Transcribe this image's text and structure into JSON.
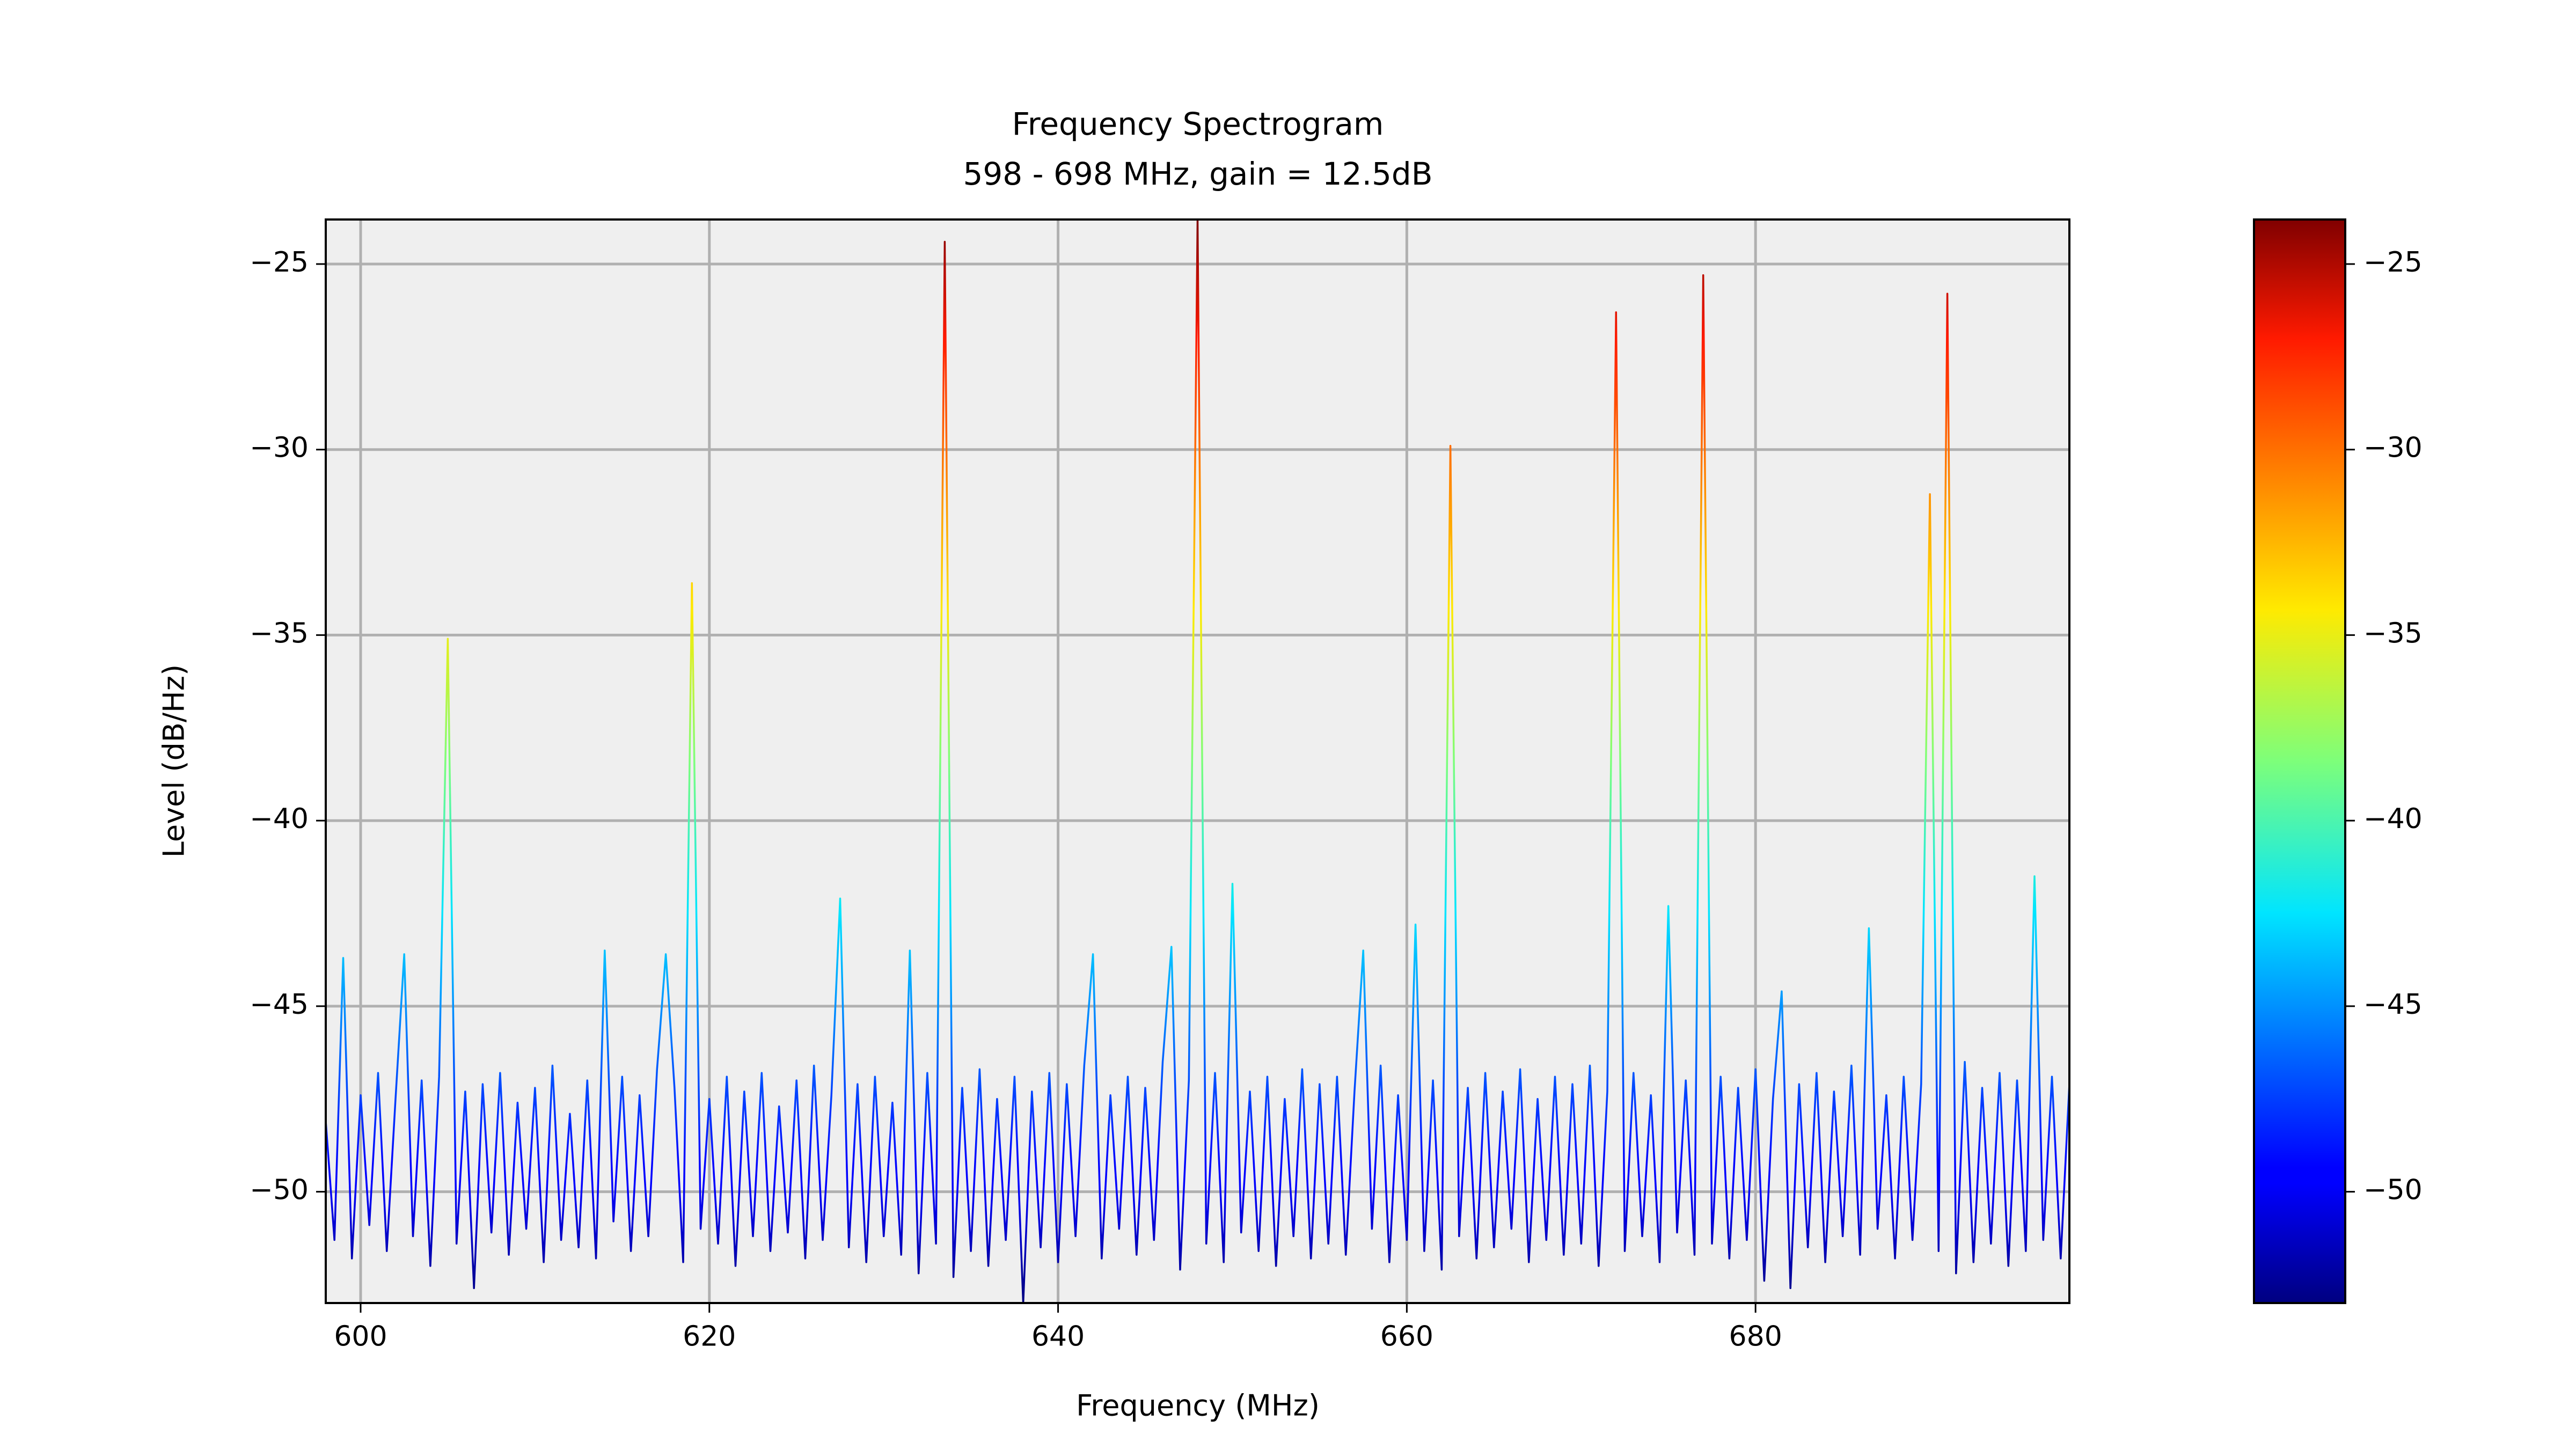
{
  "chart_data": {
    "type": "line",
    "title": "Frequency Spectrogram",
    "subtitle": "598 - 698 MHz, gain = 12.5dB",
    "x_label": "Frequency (MHz)",
    "y_label": "Level (dB/Hz)",
    "colormap": "jet",
    "background": "#efefef",
    "grid": true,
    "xlim": [
      598,
      698
    ],
    "ylim": [
      -53,
      -23.8
    ],
    "xticks": [
      600,
      620,
      640,
      660,
      680
    ],
    "yticks": [
      {
        "value": -25,
        "label": "−25"
      },
      {
        "value": -30,
        "label": "−30"
      },
      {
        "value": -35,
        "label": "−35"
      },
      {
        "value": -40,
        "label": "−40"
      },
      {
        "value": -45,
        "label": "−45"
      },
      {
        "value": -50,
        "label": "−50"
      }
    ],
    "colorbar": {
      "lim": [
        -53,
        -23.8
      ],
      "ticks": [
        {
          "value": -25,
          "label": "−25"
        },
        {
          "value": -30,
          "label": "−30"
        },
        {
          "value": -35,
          "label": "−35"
        },
        {
          "value": -40,
          "label": "−40"
        },
        {
          "value": -45,
          "label": "−45"
        },
        {
          "value": -50,
          "label": "−50"
        }
      ]
    },
    "x": [
      598,
      598.5,
      599,
      599.5,
      600,
      600.5,
      601,
      601.5,
      602,
      602.5,
      603,
      603.5,
      604,
      604.5,
      605,
      605.5,
      606,
      606.5,
      607,
      607.5,
      608,
      608.5,
      609,
      609.5,
      610,
      610.5,
      611,
      611.5,
      612,
      612.5,
      613,
      613.5,
      614,
      614.5,
      615,
      615.5,
      616,
      616.5,
      617,
      617.5,
      618,
      618.5,
      619,
      619.5,
      620,
      620.5,
      621,
      621.5,
      622,
      622.5,
      623,
      623.5,
      624,
      624.5,
      625,
      625.5,
      626,
      626.5,
      627,
      627.5,
      628,
      628.5,
      629,
      629.5,
      630,
      630.5,
      631,
      631.5,
      632,
      632.5,
      633,
      633.5,
      634,
      634.5,
      635,
      635.5,
      636,
      636.5,
      637,
      637.5,
      638,
      638.5,
      639,
      639.5,
      640,
      640.5,
      641,
      641.5,
      642,
      642.5,
      643,
      643.5,
      644,
      644.5,
      645,
      645.5,
      646,
      646.5,
      647,
      647.5,
      648,
      648.5,
      649,
      649.5,
      650,
      650.5,
      651,
      651.5,
      652,
      652.5,
      653,
      653.5,
      654,
      654.5,
      655,
      655.5,
      656,
      656.5,
      657,
      657.5,
      658,
      658.5,
      659,
      659.5,
      660,
      660.5,
      661,
      661.5,
      662,
      662.5,
      663,
      663.5,
      664,
      664.5,
      665,
      665.5,
      666,
      666.5,
      667,
      667.5,
      668,
      668.5,
      669,
      669.5,
      670,
      670.5,
      671,
      671.5,
      672,
      672.5,
      673,
      673.5,
      674,
      674.5,
      675,
      675.5,
      676,
      676.5,
      677,
      677.5,
      678,
      678.5,
      679,
      679.5,
      680,
      680.5,
      681,
      681.5,
      682,
      682.5,
      683,
      683.5,
      684,
      684.5,
      685,
      685.5,
      686,
      686.5,
      687,
      687.5,
      688,
      688.5,
      689,
      689.5,
      690,
      690.5,
      691,
      691.5,
      692,
      692.5,
      693,
      693.5,
      694,
      694.5,
      695,
      695.5,
      696,
      696.5,
      697,
      697.5,
      698
    ],
    "values": [
      -48.1,
      -51.3,
      -43.7,
      -51.8,
      -47.4,
      -50.9,
      -46.8,
      -51.6,
      -47.5,
      -43.6,
      -51.2,
      -47.0,
      -52.0,
      -46.9,
      -35.1,
      -51.4,
      -47.3,
      -52.6,
      -47.1,
      -51.1,
      -46.8,
      -51.7,
      -47.6,
      -51.0,
      -47.2,
      -51.9,
      -46.6,
      -51.3,
      -47.9,
      -51.5,
      -47.0,
      -51.8,
      -43.5,
      -50.8,
      -46.9,
      -51.6,
      -47.4,
      -51.2,
      -46.7,
      -43.6,
      -47.2,
      -51.9,
      -33.6,
      -51.0,
      -47.5,
      -51.4,
      -46.9,
      -52.0,
      -47.3,
      -51.2,
      -46.8,
      -51.6,
      -47.7,
      -51.1,
      -47.0,
      -51.8,
      -46.6,
      -51.3,
      -47.4,
      -42.1,
      -51.5,
      -47.1,
      -51.9,
      -46.9,
      -51.2,
      -47.6,
      -51.7,
      -43.5,
      -52.2,
      -46.8,
      -51.4,
      -24.4,
      -52.3,
      -47.2,
      -51.6,
      -46.7,
      -52.0,
      -47.5,
      -51.3,
      -46.9,
      -53.0,
      -47.3,
      -51.5,
      -46.8,
      -51.9,
      -47.1,
      -51.2,
      -46.6,
      -43.6,
      -51.8,
      -47.4,
      -51.0,
      -46.9,
      -51.7,
      -47.2,
      -51.3,
      -46.5,
      -43.4,
      -52.1,
      -47.0,
      -23.8,
      -51.4,
      -46.8,
      -51.9,
      -41.7,
      -51.1,
      -47.3,
      -51.6,
      -46.9,
      -52.0,
      -47.5,
      -51.2,
      -46.7,
      -51.8,
      -47.1,
      -51.4,
      -46.9,
      -51.7,
      -47.3,
      -43.5,
      -51.0,
      -46.6,
      -51.9,
      -47.4,
      -51.3,
      -42.8,
      -51.6,
      -47.0,
      -52.1,
      -29.9,
      -51.2,
      -47.2,
      -51.8,
      -46.8,
      -51.5,
      -47.3,
      -51.0,
      -46.7,
      -51.9,
      -47.5,
      -51.3,
      -46.9,
      -51.7,
      -47.1,
      -51.4,
      -46.6,
      -52.0,
      -47.3,
      -26.3,
      -51.6,
      -46.8,
      -51.2,
      -47.4,
      -51.9,
      -42.3,
      -51.1,
      -47.0,
      -51.7,
      -25.3,
      -51.4,
      -46.9,
      -51.8,
      -47.2,
      -51.3,
      -46.7,
      -52.4,
      -47.5,
      -44.6,
      -52.6,
      -47.1,
      -51.5,
      -46.8,
      -51.9,
      -47.3,
      -51.2,
      -46.6,
      -51.7,
      -42.9,
      -51.0,
      -47.4,
      -51.8,
      -46.9,
      -51.3,
      -47.1,
      -31.2,
      -51.6,
      -25.8,
      -52.2,
      -46.5,
      -51.9,
      -47.2,
      -51.4,
      -46.8,
      -52.0,
      -47.0,
      -51.6,
      -41.5,
      -51.3,
      -46.9,
      -51.8,
      -47.1
    ]
  }
}
